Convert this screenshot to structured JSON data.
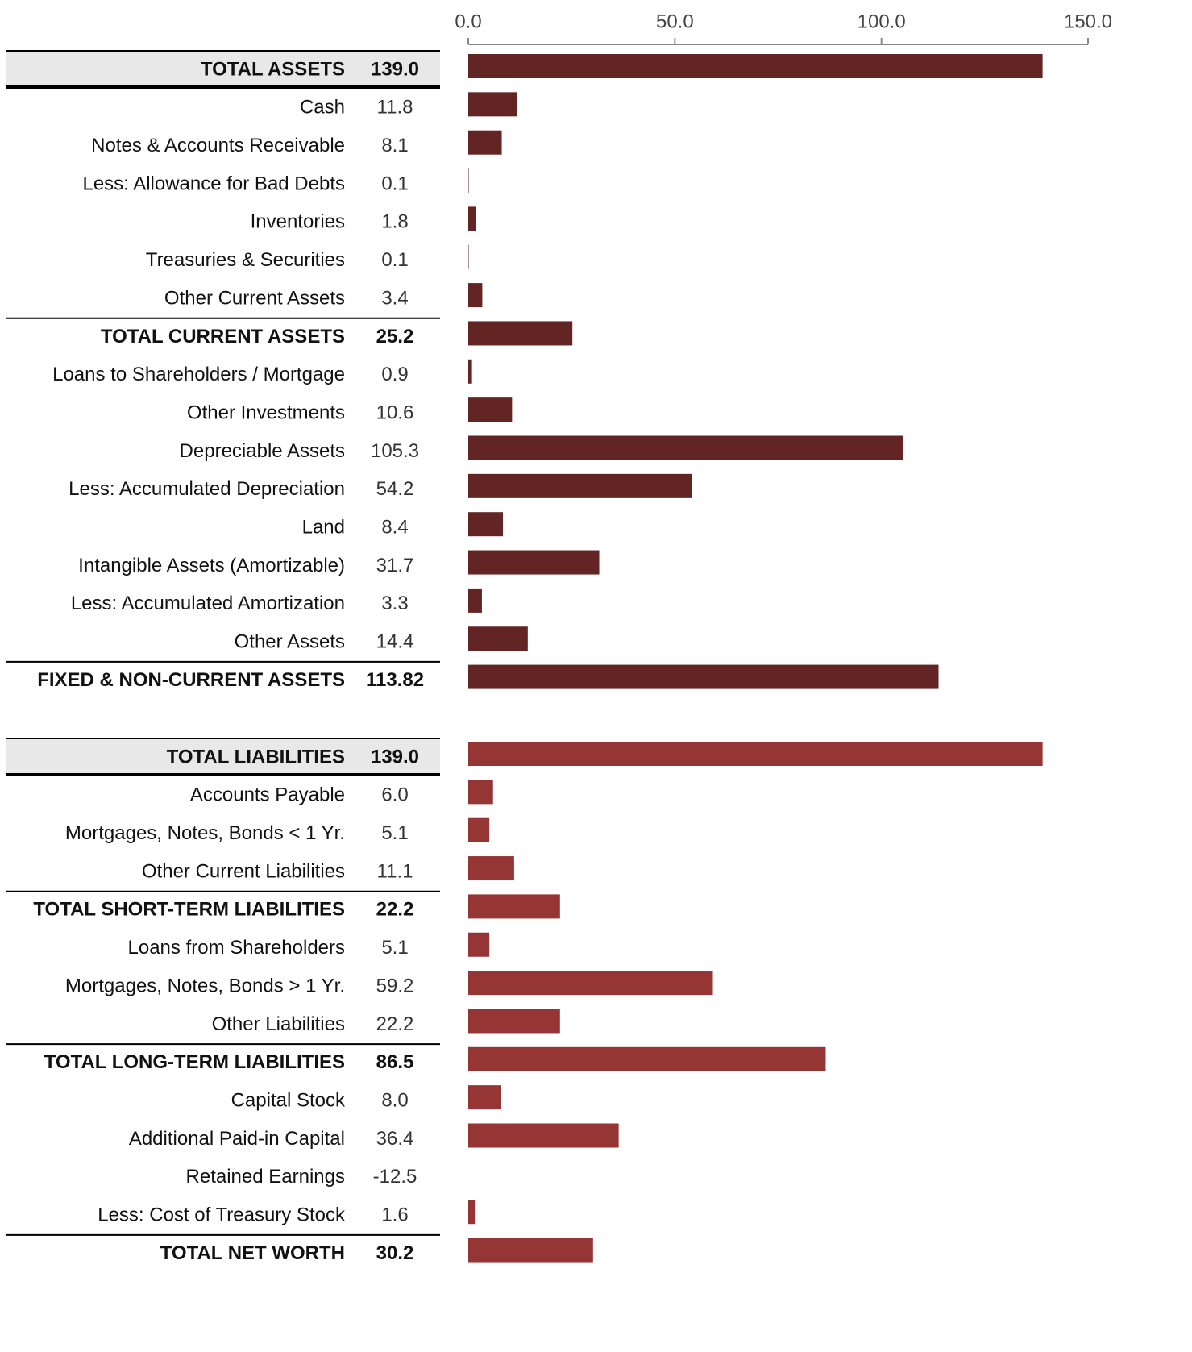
{
  "chart_data": {
    "type": "bar",
    "orientation": "horizontal",
    "xlim": [
      0,
      150
    ],
    "xticks": [
      {
        "value": 0,
        "label": "0.0"
      },
      {
        "value": 50,
        "label": "50.0"
      },
      {
        "value": 100,
        "label": "100.0"
      },
      {
        "value": 150,
        "label": "150.0"
      }
    ],
    "groups": [
      {
        "color": "#632523",
        "bold": [
          0,
          7,
          16
        ],
        "highlight": 0,
        "rules_above": [
          7,
          16
        ],
        "categories": [
          "TOTAL ASSETS",
          "Cash",
          "Notes & Accounts Receivable",
          "Less:  Allowance for Bad Debts",
          "Inventories",
          "Treasuries & Securities",
          "Other Current Assets",
          "TOTAL CURRENT ASSETS",
          "Loans to Shareholders / Mortgage",
          "Other Investments",
          "Depreciable Assets",
          "Less:  Accumulated Depreciation",
          "Land",
          "Intangible Assets (Amortizable)",
          "Less:  Accumulated Amortization",
          "Other Assets",
          "FIXED & NON-CURRENT ASSETS"
        ],
        "values": [
          139.0,
          11.8,
          8.1,
          0.1,
          1.8,
          0.1,
          3.4,
          25.2,
          0.9,
          10.6,
          105.3,
          54.2,
          8.4,
          31.7,
          3.3,
          14.4,
          113.82
        ],
        "value_labels": [
          "139.0",
          "11.8",
          "8.1",
          "0.1",
          "1.8",
          "0.1",
          "3.4",
          "25.2",
          "0.9",
          "10.6",
          "105.3",
          "54.2",
          "8.4",
          "31.7",
          "3.3",
          "14.4",
          "113.82"
        ]
      },
      {
        "color": "#963634",
        "bold": [
          0,
          4,
          8,
          13
        ],
        "highlight": 0,
        "rules_above": [
          4,
          8,
          13
        ],
        "categories": [
          "TOTAL LIABILITIES",
          "Accounts Payable",
          "Mortgages, Notes, Bonds  < 1 Yr.",
          "Other Current Liabilities",
          "TOTAL SHORT-TERM LIABILITIES",
          "Loans from Shareholders",
          "Mortgages, Notes, Bonds > 1 Yr.",
          "Other Liabilities",
          "TOTAL LONG-TERM LIABILITIES",
          "Capital Stock",
          "Additional Paid-in Capital",
          "Retained Earnings",
          "Less:  Cost of Treasury Stock",
          "TOTAL NET WORTH"
        ],
        "values": [
          139.0,
          6.0,
          5.1,
          11.1,
          22.2,
          5.1,
          59.2,
          22.2,
          86.5,
          8.0,
          36.4,
          -12.5,
          1.6,
          30.2
        ],
        "value_labels": [
          "139.0",
          "6.0",
          "5.1",
          "11.1",
          "22.2",
          "5.1",
          "59.2",
          "22.2",
          "86.5",
          "8.0",
          "36.4",
          "-12.5",
          "1.6",
          "30.2"
        ]
      }
    ]
  }
}
